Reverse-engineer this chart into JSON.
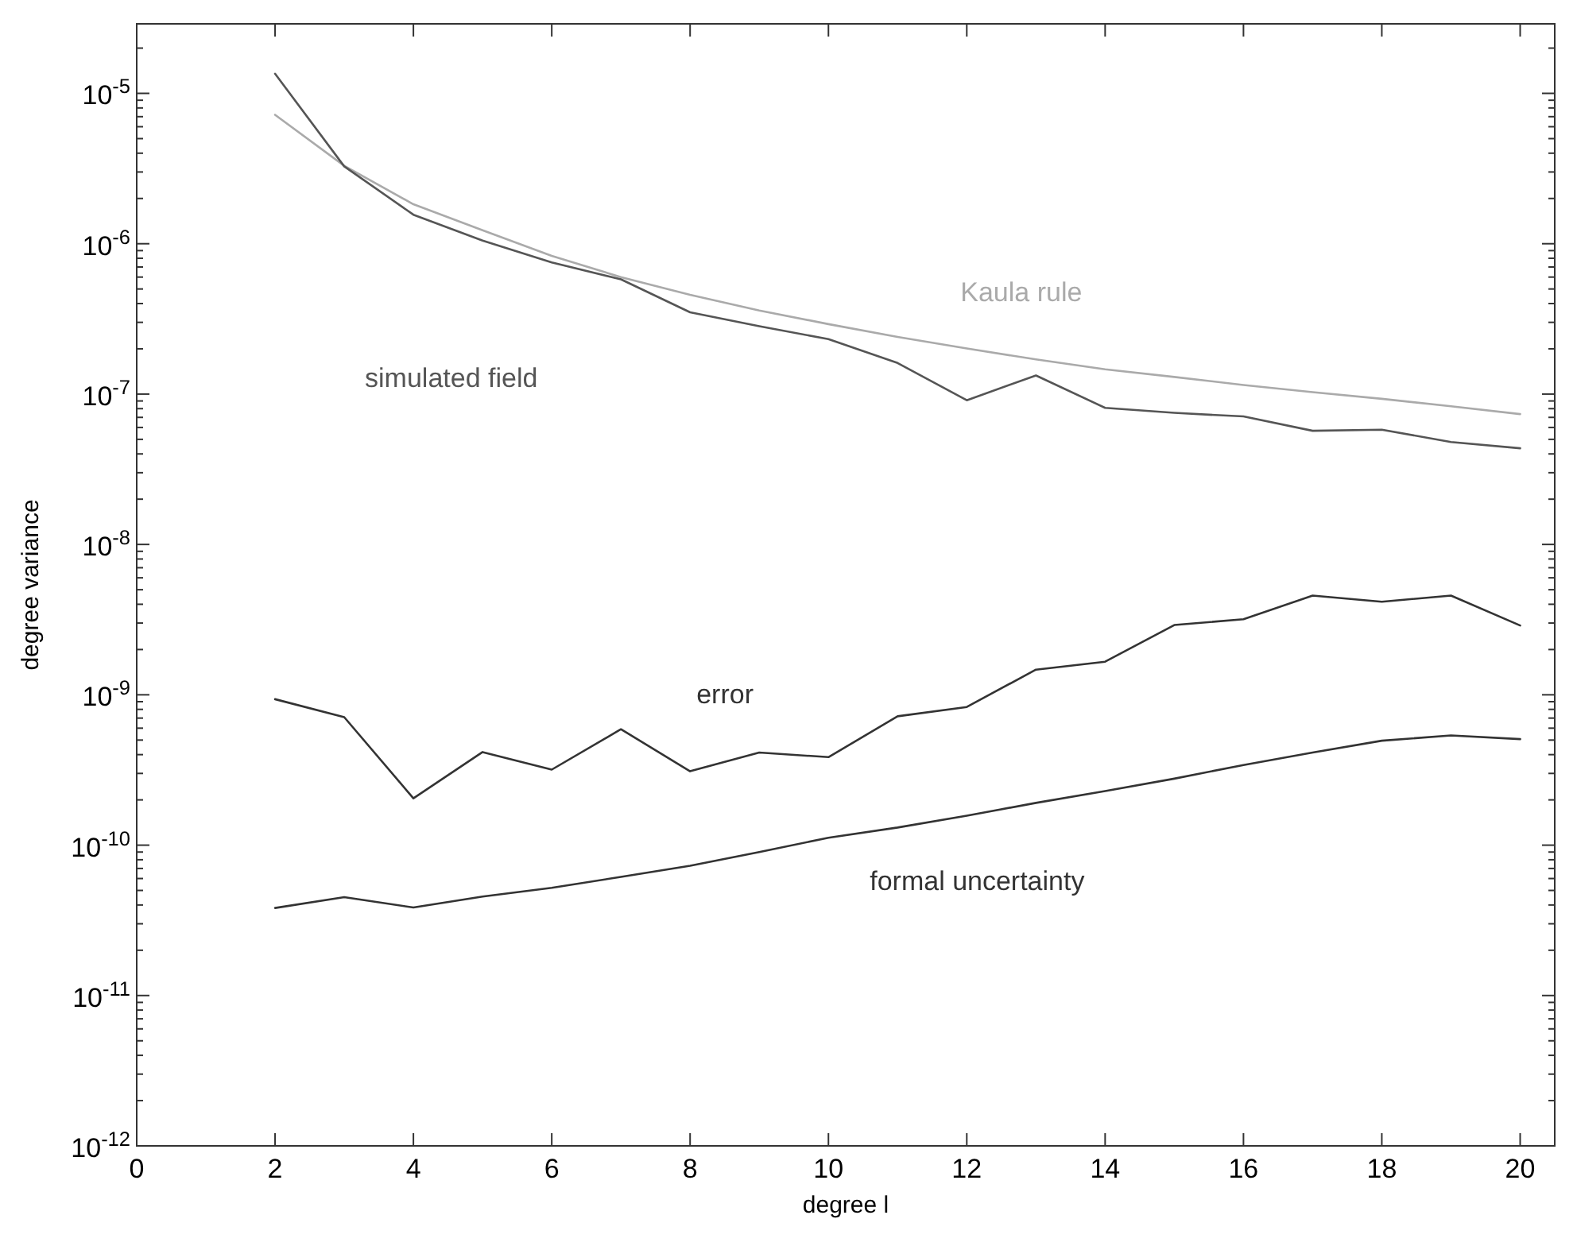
{
  "chart_data": {
    "type": "line",
    "xlabel": "degree l",
    "ylabel": "degree variance",
    "log": "y",
    "grid": false,
    "marker": "none",
    "line_style": "solid",
    "x": [
      2,
      3,
      4,
      5,
      6,
      7,
      8,
      9,
      10,
      11,
      12,
      13,
      14,
      15,
      16,
      17,
      18,
      19,
      20
    ],
    "xlim": [
      0,
      20.5
    ],
    "xticks": [
      0,
      2,
      4,
      6,
      8,
      10,
      12,
      14,
      16,
      18,
      20
    ],
    "ylim": [
      1e-12,
      2.9e-05
    ],
    "yticks": [
      {
        "value": 1e-12,
        "label": "10$^{-12}$"
      },
      {
        "value": 2e-12,
        "label": null
      },
      {
        "value": 3e-12,
        "label": null
      },
      {
        "value": 4e-12,
        "label": null
      },
      {
        "value": 5e-12,
        "label": null
      },
      {
        "value": 6e-12,
        "label": null
      },
      {
        "value": 7e-12,
        "label": null
      },
      {
        "value": 8e-12,
        "label": null
      },
      {
        "value": 9e-12,
        "label": null
      },
      {
        "value": 1e-11,
        "label": "10$^{-11}$"
      },
      {
        "value": 2e-11,
        "label": null
      },
      {
        "value": 3e-11,
        "label": null
      },
      {
        "value": 4e-11,
        "label": null
      },
      {
        "value": 5e-11,
        "label": null
      },
      {
        "value": 6e-11,
        "label": null
      },
      {
        "value": 7e-11,
        "label": null
      },
      {
        "value": 8e-11,
        "label": null
      },
      {
        "value": 9e-11,
        "label": null
      },
      {
        "value": 1e-10,
        "label": "10$^{-10}$"
      },
      {
        "value": 2e-10,
        "label": null
      },
      {
        "value": 3e-10,
        "label": null
      },
      {
        "value": 4e-10,
        "label": null
      },
      {
        "value": 5e-10,
        "label": null
      },
      {
        "value": 6e-10,
        "label": null
      },
      {
        "value": 7e-10,
        "label": null
      },
      {
        "value": 8e-10,
        "label": null
      },
      {
        "value": 9e-10,
        "label": null
      },
      {
        "value": 1e-09,
        "label": "10$^{-9}$"
      },
      {
        "value": 2e-09,
        "label": null
      },
      {
        "value": 3e-09,
        "label": null
      },
      {
        "value": 4e-09,
        "label": null
      },
      {
        "value": 5e-09,
        "label": null
      },
      {
        "value": 6e-09,
        "label": null
      },
      {
        "value": 7e-09,
        "label": null
      },
      {
        "value": 8e-09,
        "label": null
      },
      {
        "value": 9e-09,
        "label": null
      },
      {
        "value": 1e-08,
        "label": "10$^{-8}$"
      },
      {
        "value": 2e-08,
        "label": null
      },
      {
        "value": 3e-08,
        "label": null
      },
      {
        "value": 4e-08,
        "label": null
      },
      {
        "value": 5e-08,
        "label": null
      },
      {
        "value": 6e-08,
        "label": null
      },
      {
        "value": 7e-08,
        "label": null
      },
      {
        "value": 8e-08,
        "label": null
      },
      {
        "value": 9e-08,
        "label": null
      },
      {
        "value": 1e-07,
        "label": "10$^{-7}$"
      },
      {
        "value": 2e-07,
        "label": null
      },
      {
        "value": 3e-07,
        "label": null
      },
      {
        "value": 4e-07,
        "label": null
      },
      {
        "value": 5e-07,
        "label": null
      },
      {
        "value": 6e-07,
        "label": null
      },
      {
        "value": 7e-07,
        "label": null
      },
      {
        "value": 8e-07,
        "label": null
      },
      {
        "value": 9e-07,
        "label": null
      },
      {
        "value": 1e-06,
        "label": "10$^{-6}$"
      },
      {
        "value": 2e-06,
        "label": null
      },
      {
        "value": 3e-06,
        "label": null
      },
      {
        "value": 4e-06,
        "label": null
      },
      {
        "value": 5e-06,
        "label": null
      },
      {
        "value": 6e-06,
        "label": null
      },
      {
        "value": 7e-06,
        "label": null
      },
      {
        "value": 8e-06,
        "label": null
      },
      {
        "value": 9e-06,
        "label": null
      },
      {
        "value": 1e-05,
        "label": "10$^{-5}$"
      },
      {
        "value": 2e-05,
        "label": null
      }
    ],
    "series": [
      {
        "name": "Kaula rule",
        "color": "#aaaaaa",
        "values": [
          7.2e-06,
          3.3e-06,
          1.83e-06,
          1.23e-06,
          8.3e-07,
          6e-07,
          4.57e-07,
          3.6e-07,
          2.92e-07,
          2.4e-07,
          2.01e-07,
          1.7e-07,
          1.46e-07,
          1.3e-07,
          1.15e-07,
          1.03e-07,
          9.3e-08,
          8.3e-08,
          7.36e-08
        ]
      },
      {
        "name": "simulated field",
        "color": "#555555",
        "values": [
          1.35e-05,
          3.27e-06,
          1.56e-06,
          1.05e-06,
          7.5e-07,
          5.8e-07,
          3.5e-07,
          2.83e-07,
          2.32e-07,
          1.61e-07,
          9.1e-08,
          1.33e-07,
          8.1e-08,
          7.5e-08,
          7.1e-08,
          5.7e-08,
          5.8e-08,
          4.8e-08,
          4.36e-08
        ]
      },
      {
        "name": "error",
        "color": "#333333",
        "values": [
          9.35e-10,
          7.1e-10,
          2.05e-10,
          4.16e-10,
          3.18e-10,
          5.9e-10,
          3.1e-10,
          4.13e-10,
          3.85e-10,
          7.2e-10,
          8.3e-10,
          1.47e-09,
          1.66e-09,
          2.91e-09,
          3.18e-09,
          4.57e-09,
          4.16e-09,
          4.57e-09,
          2.89e-09
        ]
      },
      {
        "name": "formal uncertainty",
        "color": "#333333",
        "values": [
          3.82e-11,
          4.51e-11,
          3.85e-11,
          4.55e-11,
          5.2e-11,
          6.15e-11,
          7.3e-11,
          9e-11,
          1.12e-10,
          1.31e-10,
          1.57e-10,
          1.91e-10,
          2.29e-10,
          2.77e-10,
          3.41e-10,
          4.13e-10,
          4.95e-10,
          5.37e-10,
          5.07e-10
        ]
      }
    ]
  }
}
